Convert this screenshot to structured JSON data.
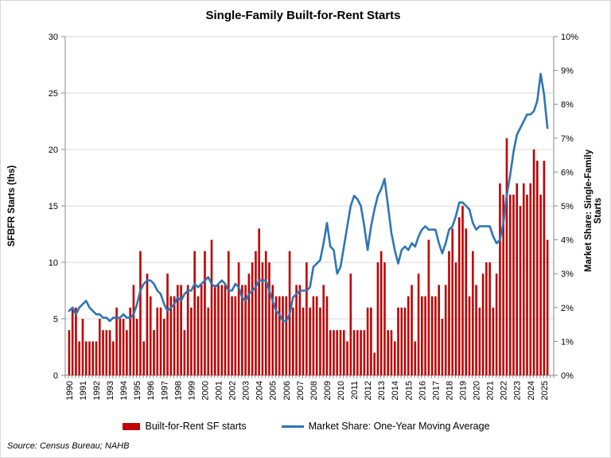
{
  "title": "Single-Family Built-for-Rent Starts",
  "axes": {
    "left": {
      "label": "SFBFR Starts (ths)",
      "ticks": [
        "0",
        "5",
        "10",
        "15",
        "20",
        "25",
        "30"
      ],
      "max": 30
    },
    "right": {
      "label": "Market Share: Single-Family Starts",
      "ticks": [
        "0%",
        "1%",
        "2%",
        "3%",
        "4%",
        "5%",
        "6%",
        "7%",
        "8%",
        "9%",
        "10%"
      ],
      "max": 10
    },
    "x": {
      "years": [
        "1990",
        "1991",
        "1992",
        "1993",
        "1994",
        "1995",
        "1996",
        "1997",
        "1998",
        "1999",
        "2000",
        "2001",
        "2002",
        "2003",
        "2004",
        "2005",
        "2006",
        "2007",
        "2008",
        "2009",
        "2010",
        "2011",
        "2012",
        "2013",
        "2014",
        "2015",
        "2016",
        "2017",
        "2018",
        "2019",
        "2020",
        "2021",
        "2022",
        "2023",
        "2024",
        "2025"
      ]
    }
  },
  "legend": {
    "bar_label": "Built-for-Rent SF starts",
    "line_label": "Market Share: One-Year Moving Average"
  },
  "source": "Source: Census Bureau; NAHB",
  "colors": {
    "bar": "#C00000",
    "line": "#2E75B6",
    "gridline": "#D9D9D9",
    "axis": "#898989",
    "text": "#000000"
  },
  "chart_data": {
    "type": "bar+line combo",
    "frequency": "quarterly",
    "start": "1990Q1",
    "end": "2025Q2",
    "grid": "horizontal gridlines every 5 (left axis)",
    "legend_position": "bottom center",
    "left_axis_range": [
      0,
      30
    ],
    "right_axis_range_percent": [
      0,
      10
    ],
    "series": [
      {
        "name": "Built-for-Rent SF starts",
        "type": "bar",
        "axis": "left",
        "unit": "thousands of starts",
        "values": [
          4,
          6,
          6,
          3,
          5,
          3,
          3,
          3,
          3,
          5,
          4,
          4,
          4,
          3,
          6,
          5,
          5,
          4,
          6,
          8,
          5,
          11,
          3,
          9,
          7,
          4,
          6,
          6,
          5,
          9,
          7,
          7,
          8,
          8,
          4,
          8,
          6,
          11,
          7,
          8,
          11,
          6,
          12,
          8,
          8,
          8,
          8,
          11,
          7,
          7,
          10,
          8,
          8,
          9,
          10,
          11,
          13,
          10,
          11,
          10,
          8,
          7,
          7,
          7,
          7,
          11,
          6,
          8,
          8,
          6,
          10,
          6,
          7,
          7,
          6,
          8,
          7,
          4,
          4,
          4,
          4,
          4,
          3,
          9,
          4,
          4,
          4,
          4,
          6,
          6,
          2,
          10,
          11,
          10,
          4,
          4,
          3,
          6,
          6,
          6,
          7,
          8,
          3,
          9,
          7,
          7,
          12,
          7,
          7,
          8,
          5,
          8,
          11,
          13,
          10,
          14,
          15,
          13,
          7,
          11,
          8,
          6,
          9,
          10,
          10,
          6,
          9,
          17,
          16,
          21,
          16,
          16,
          17,
          15,
          17,
          16,
          17,
          20,
          19,
          16,
          19,
          12
        ]
      },
      {
        "name": "Market Share: One-Year Moving Average",
        "type": "line",
        "axis": "right",
        "unit": "percent",
        "values": [
          1.9,
          2.0,
          1.8,
          2.0,
          2.1,
          2.2,
          2.0,
          1.9,
          1.8,
          1.8,
          1.7,
          1.7,
          1.6,
          1.7,
          1.7,
          1.7,
          1.8,
          1.7,
          1.7,
          1.8,
          2.1,
          2.5,
          2.7,
          2.8,
          2.8,
          2.7,
          2.5,
          2.4,
          2.1,
          1.9,
          2.0,
          2.1,
          2.3,
          2.2,
          2.4,
          2.5,
          2.5,
          2.7,
          2.6,
          2.7,
          2.8,
          2.9,
          2.7,
          2.6,
          2.7,
          2.8,
          2.7,
          2.5,
          2.5,
          2.7,
          2.6,
          2.3,
          2.2,
          2.4,
          2.5,
          2.6,
          2.8,
          2.8,
          2.8,
          2.5,
          2.2,
          1.9,
          1.8,
          1.6,
          1.6,
          1.8,
          2.3,
          2.4,
          2.5,
          2.5,
          2.5,
          2.6,
          3.2,
          3.3,
          3.4,
          3.9,
          4.5,
          3.8,
          3.7,
          3.0,
          3.2,
          3.8,
          4.4,
          5.0,
          5.3,
          5.2,
          5.0,
          4.4,
          3.7,
          4.4,
          4.9,
          5.3,
          5.5,
          5.8,
          5.0,
          4.2,
          3.7,
          3.3,
          3.7,
          3.8,
          3.7,
          3.9,
          3.8,
          4.1,
          4.3,
          4.4,
          4.3,
          4.3,
          4.3,
          3.9,
          3.6,
          3.9,
          4.3,
          4.4,
          4.7,
          5.1,
          5.1,
          5.0,
          4.9,
          4.5,
          4.3,
          4.4,
          4.4,
          4.4,
          4.4,
          4.1,
          3.9,
          4.0,
          4.5,
          5.3,
          5.9,
          6.6,
          7.1,
          7.3,
          7.5,
          7.7,
          7.7,
          7.8,
          8.1,
          8.9,
          8.3,
          7.3
        ]
      }
    ]
  }
}
